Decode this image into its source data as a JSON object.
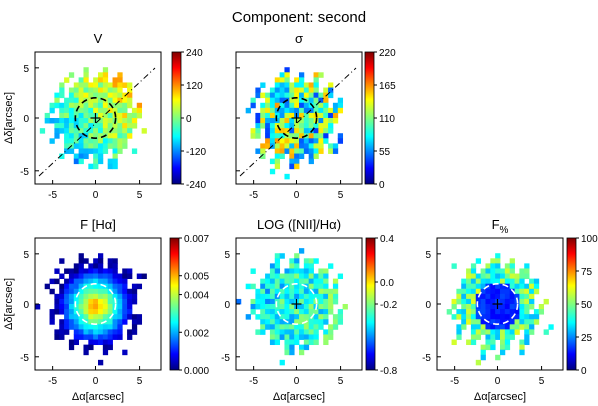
{
  "figure": {
    "title": "Component: second"
  },
  "chart_data": [
    {
      "type": "heatmap",
      "title": "V",
      "ylabel": "Δδ[arcsec]",
      "xlabel": "",
      "x_ticks": [
        "-5",
        "0",
        "5"
      ],
      "y_ticks": [
        "5",
        "0",
        "-5"
      ],
      "colorbar": {
        "ticks": [
          "240",
          "120",
          "0",
          "-120",
          "-240"
        ],
        "range": [
          -240,
          240
        ],
        "colormap": "jet"
      },
      "overlays": [
        "dashed circle at center",
        "dash-dot diagonal line",
        "center cross"
      ]
    },
    {
      "type": "heatmap",
      "title": "σ",
      "xlabel": "",
      "x_ticks": [
        "-5",
        "0",
        "5"
      ],
      "y_ticks": [],
      "colorbar": {
        "ticks": [
          "220",
          "165",
          "110",
          "55",
          "0"
        ],
        "range": [
          0,
          220
        ],
        "colormap": "jet"
      },
      "overlays": [
        "dashed circle at center",
        "dash-dot diagonal line",
        "center cross"
      ]
    },
    {
      "type": "heatmap",
      "title": "F [Hα]",
      "ylabel": "Δδ[arcsec]",
      "xlabel": "Δα[arcsec]",
      "x_ticks": [
        "-5",
        "0",
        "5"
      ],
      "y_ticks": [
        "5",
        "0",
        "-5"
      ],
      "colorbar": {
        "ticks": [
          "0.007",
          "0.005",
          "0.004",
          "0.002",
          "0.000"
        ],
        "range": [
          0,
          0.007
        ],
        "colormap": "jet"
      },
      "overlays": [
        "white dashed circle at center"
      ]
    },
    {
      "type": "heatmap",
      "title": "LOG ([NII]/Hα)",
      "xlabel": "Δα[arcsec]",
      "x_ticks": [
        "-5",
        "0",
        "5"
      ],
      "y_ticks": [
        "5",
        "0",
        "-5"
      ],
      "colorbar": {
        "ticks": [
          "0.4",
          "0.0",
          "-0.2",
          "-0.8"
        ],
        "range": [
          -0.8,
          0.4
        ],
        "colormap": "jet"
      },
      "overlays": [
        "white dashed circle at center",
        "center cross"
      ]
    },
    {
      "type": "heatmap",
      "title": "F%",
      "xlabel": "Δα[arcsec]",
      "x_ticks": [
        "-5",
        "0",
        "5"
      ],
      "y_ticks": [
        "5",
        "0",
        "-5"
      ],
      "colorbar": {
        "ticks": [
          "100",
          "75",
          "50",
          "25",
          "0"
        ],
        "range": [
          0,
          100
        ],
        "colormap": "jet"
      },
      "overlays": [
        "white dashed circle at center",
        "center cross"
      ]
    }
  ]
}
